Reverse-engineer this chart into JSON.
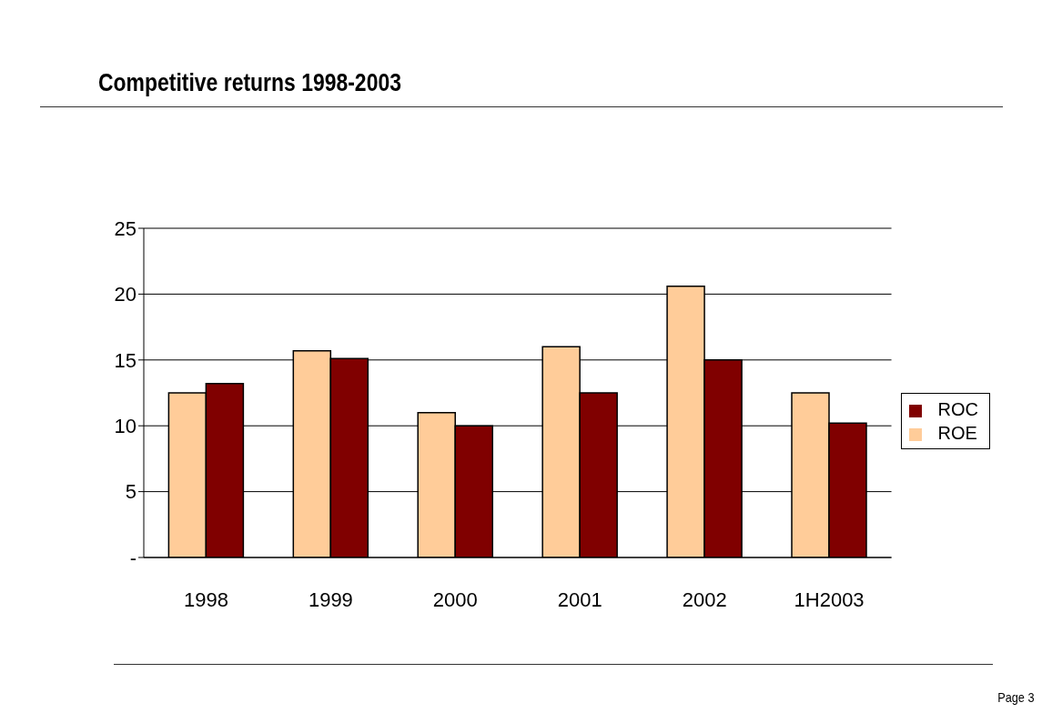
{
  "chart_data": {
    "type": "bar",
    "title": "Competitive returns 1998-2003",
    "categories": [
      "1998",
      "1999",
      "2000",
      "2001",
      "2002",
      "1H2003"
    ],
    "series": [
      {
        "name": "ROE",
        "color": "#ffcc99",
        "values": [
          12.5,
          15.7,
          11.0,
          16.0,
          20.6,
          12.5
        ]
      },
      {
        "name": "ROC",
        "color": "#800000",
        "values": [
          13.2,
          15.1,
          10.0,
          12.5,
          15.0,
          10.2
        ]
      }
    ],
    "ylim": [
      0,
      25
    ],
    "yticks": [
      {
        "value": 0,
        "label": "-"
      },
      5,
      10,
      15,
      20,
      25
    ],
    "grid": "y",
    "legend": "right",
    "annotations": [
      "Page 3"
    ]
  }
}
